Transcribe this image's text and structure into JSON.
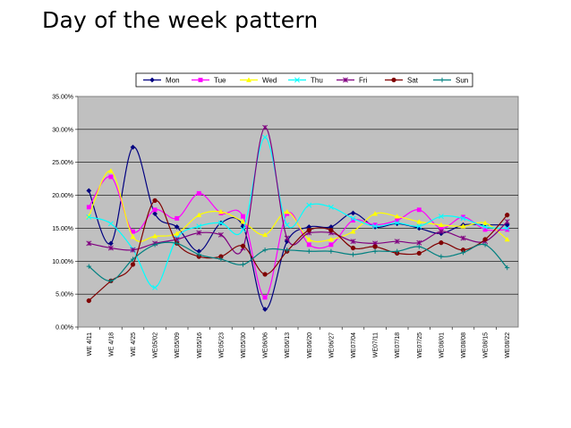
{
  "slide": {
    "title": "Day of the week pattern"
  },
  "chart_data": {
    "type": "line",
    "title": "",
    "xlabel": "",
    "ylabel": "",
    "ylim": [
      0,
      0.35
    ],
    "yticks": [
      "0.00%",
      "5.00%",
      "10.00%",
      "15.00%",
      "20.00%",
      "25.00%",
      "30.00%",
      "35.00%"
    ],
    "grid": "horizontal",
    "legend_position": "top",
    "categories": [
      "WE 4/11",
      "WE 4/18",
      "WE 4/25",
      "WE05/02",
      "WE05/09",
      "WE05/16",
      "WE05/23",
      "WE05/30",
      "WE06/06",
      "WE06/13",
      "WE06/20",
      "WE06/27",
      "WE07/04",
      "WE07/11",
      "WE07/18",
      "WE07/25",
      "WE08/01",
      "WE08/08",
      "WE08/15",
      "WE08/22"
    ],
    "series": [
      {
        "name": "Mon",
        "color": "#000080",
        "marker": "diamond",
        "values": [
          0.207,
          0.127,
          0.273,
          0.172,
          0.152,
          0.115,
          0.158,
          0.153,
          0.027,
          0.13,
          0.152,
          0.152,
          0.173,
          0.152,
          0.157,
          0.15,
          0.142,
          0.155,
          0.155,
          0.155
        ]
      },
      {
        "name": "Tue",
        "color": "#FF00FF",
        "marker": "square",
        "values": [
          0.182,
          0.228,
          0.145,
          0.178,
          0.165,
          0.203,
          0.173,
          0.168,
          0.045,
          0.172,
          0.125,
          0.125,
          0.162,
          0.155,
          0.162,
          0.178,
          0.15,
          0.167,
          0.148,
          0.148
        ]
      },
      {
        "name": "Wed",
        "color": "#FFFF00",
        "marker": "triangle",
        "values": [
          0.168,
          0.237,
          0.137,
          0.138,
          0.142,
          0.17,
          0.175,
          0.16,
          0.14,
          0.175,
          0.133,
          0.133,
          0.145,
          0.172,
          0.168,
          0.16,
          0.155,
          0.153,
          0.158,
          0.133
        ]
      },
      {
        "name": "Thu",
        "color": "#00FFFF",
        "marker": "x",
        "values": [
          0.167,
          0.157,
          0.118,
          0.06,
          0.135,
          0.153,
          0.158,
          0.148,
          0.288,
          0.155,
          0.185,
          0.182,
          0.165,
          0.153,
          0.158,
          0.153,
          0.168,
          0.165,
          0.152,
          0.15
        ]
      },
      {
        "name": "Fri",
        "color": "#800080",
        "marker": "asterisk",
        "values": [
          0.127,
          0.12,
          0.117,
          0.127,
          0.133,
          0.143,
          0.14,
          0.12,
          0.303,
          0.135,
          0.143,
          0.143,
          0.13,
          0.127,
          0.13,
          0.128,
          0.145,
          0.135,
          0.13,
          0.16
        ]
      },
      {
        "name": "Sat",
        "color": "#800000",
        "marker": "circle",
        "values": [
          0.04,
          0.07,
          0.095,
          0.192,
          0.127,
          0.107,
          0.107,
          0.123,
          0.08,
          0.115,
          0.147,
          0.147,
          0.12,
          0.122,
          0.112,
          0.112,
          0.128,
          0.117,
          0.133,
          0.17
        ]
      },
      {
        "name": "Sun",
        "color": "#008080",
        "marker": "plus",
        "values": [
          0.092,
          0.07,
          0.103,
          0.125,
          0.127,
          0.11,
          0.103,
          0.095,
          0.117,
          0.117,
          0.115,
          0.115,
          0.11,
          0.115,
          0.115,
          0.122,
          0.107,
          0.113,
          0.125,
          0.09
        ]
      }
    ]
  }
}
